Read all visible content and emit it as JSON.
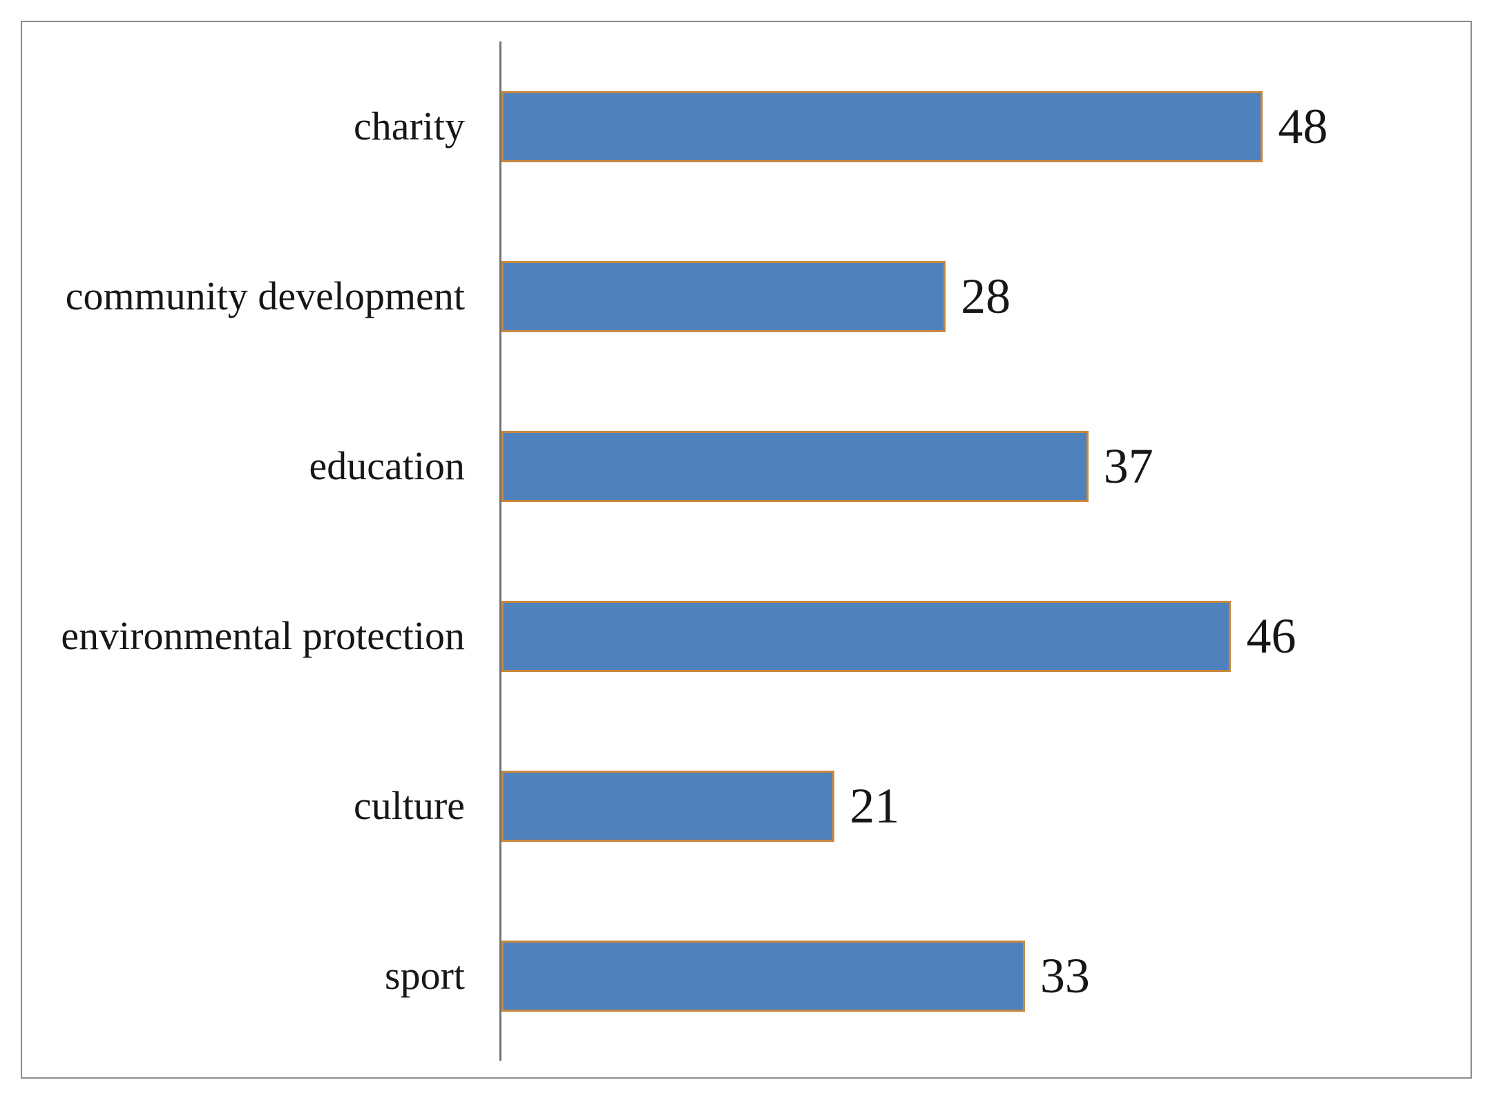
{
  "chart_data": {
    "type": "bar",
    "orientation": "horizontal",
    "title": "",
    "xlabel": "",
    "ylabel": "",
    "categories": [
      "charity",
      "community development",
      "education",
      "environmental protection",
      "culture",
      "sport"
    ],
    "values": [
      48,
      28,
      37,
      46,
      21,
      33
    ],
    "xlim": [
      0,
      60
    ],
    "gridlines": false,
    "legend": "none",
    "data_labels": true,
    "colors": {
      "bar_fill": "#4f81bd",
      "bar_border": "#c8883e",
      "axis_line": "#737373",
      "frame_border": "#8c8c8c",
      "text": "#161616",
      "background": "#ffffff"
    }
  }
}
